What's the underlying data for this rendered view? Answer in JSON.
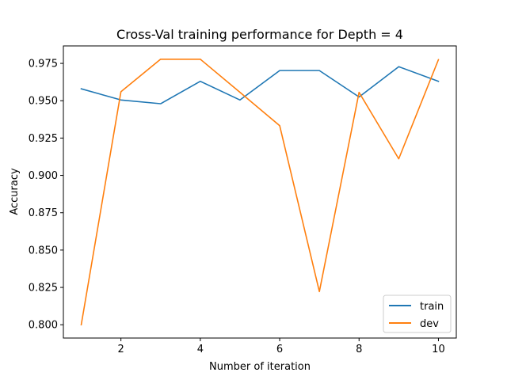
{
  "chart_data": {
    "type": "line",
    "title": "Cross-Val training performance for Depth = 4",
    "xlabel": "Number of iteration",
    "ylabel": "Accuracy",
    "x": [
      1,
      2,
      3,
      4,
      5,
      6,
      7,
      8,
      9,
      10
    ],
    "xticks": [
      2,
      4,
      6,
      8,
      10
    ],
    "xlim": [
      0.55,
      10.45
    ],
    "yticks": [
      0.8,
      0.825,
      0.85,
      0.875,
      0.9,
      0.925,
      0.95,
      0.975
    ],
    "ytick_labels": [
      "0.800",
      "0.825",
      "0.850",
      "0.875",
      "0.900",
      "0.925",
      "0.950",
      "0.975"
    ],
    "ylim": [
      0.7911,
      0.9867
    ],
    "grid": false,
    "legend_position": "lower-right",
    "series": [
      {
        "name": "train",
        "color": "#1f77b4",
        "values": [
          0.958,
          0.9505,
          0.948,
          0.963,
          0.9505,
          0.9702,
          0.9702,
          0.9525,
          0.9728,
          0.963
        ]
      },
      {
        "name": "dev",
        "color": "#ff7f0e",
        "values": [
          0.8,
          0.956,
          0.9778,
          0.9778,
          0.9556,
          0.9333,
          0.8222,
          0.9556,
          0.9111,
          0.9775
        ]
      }
    ]
  }
}
